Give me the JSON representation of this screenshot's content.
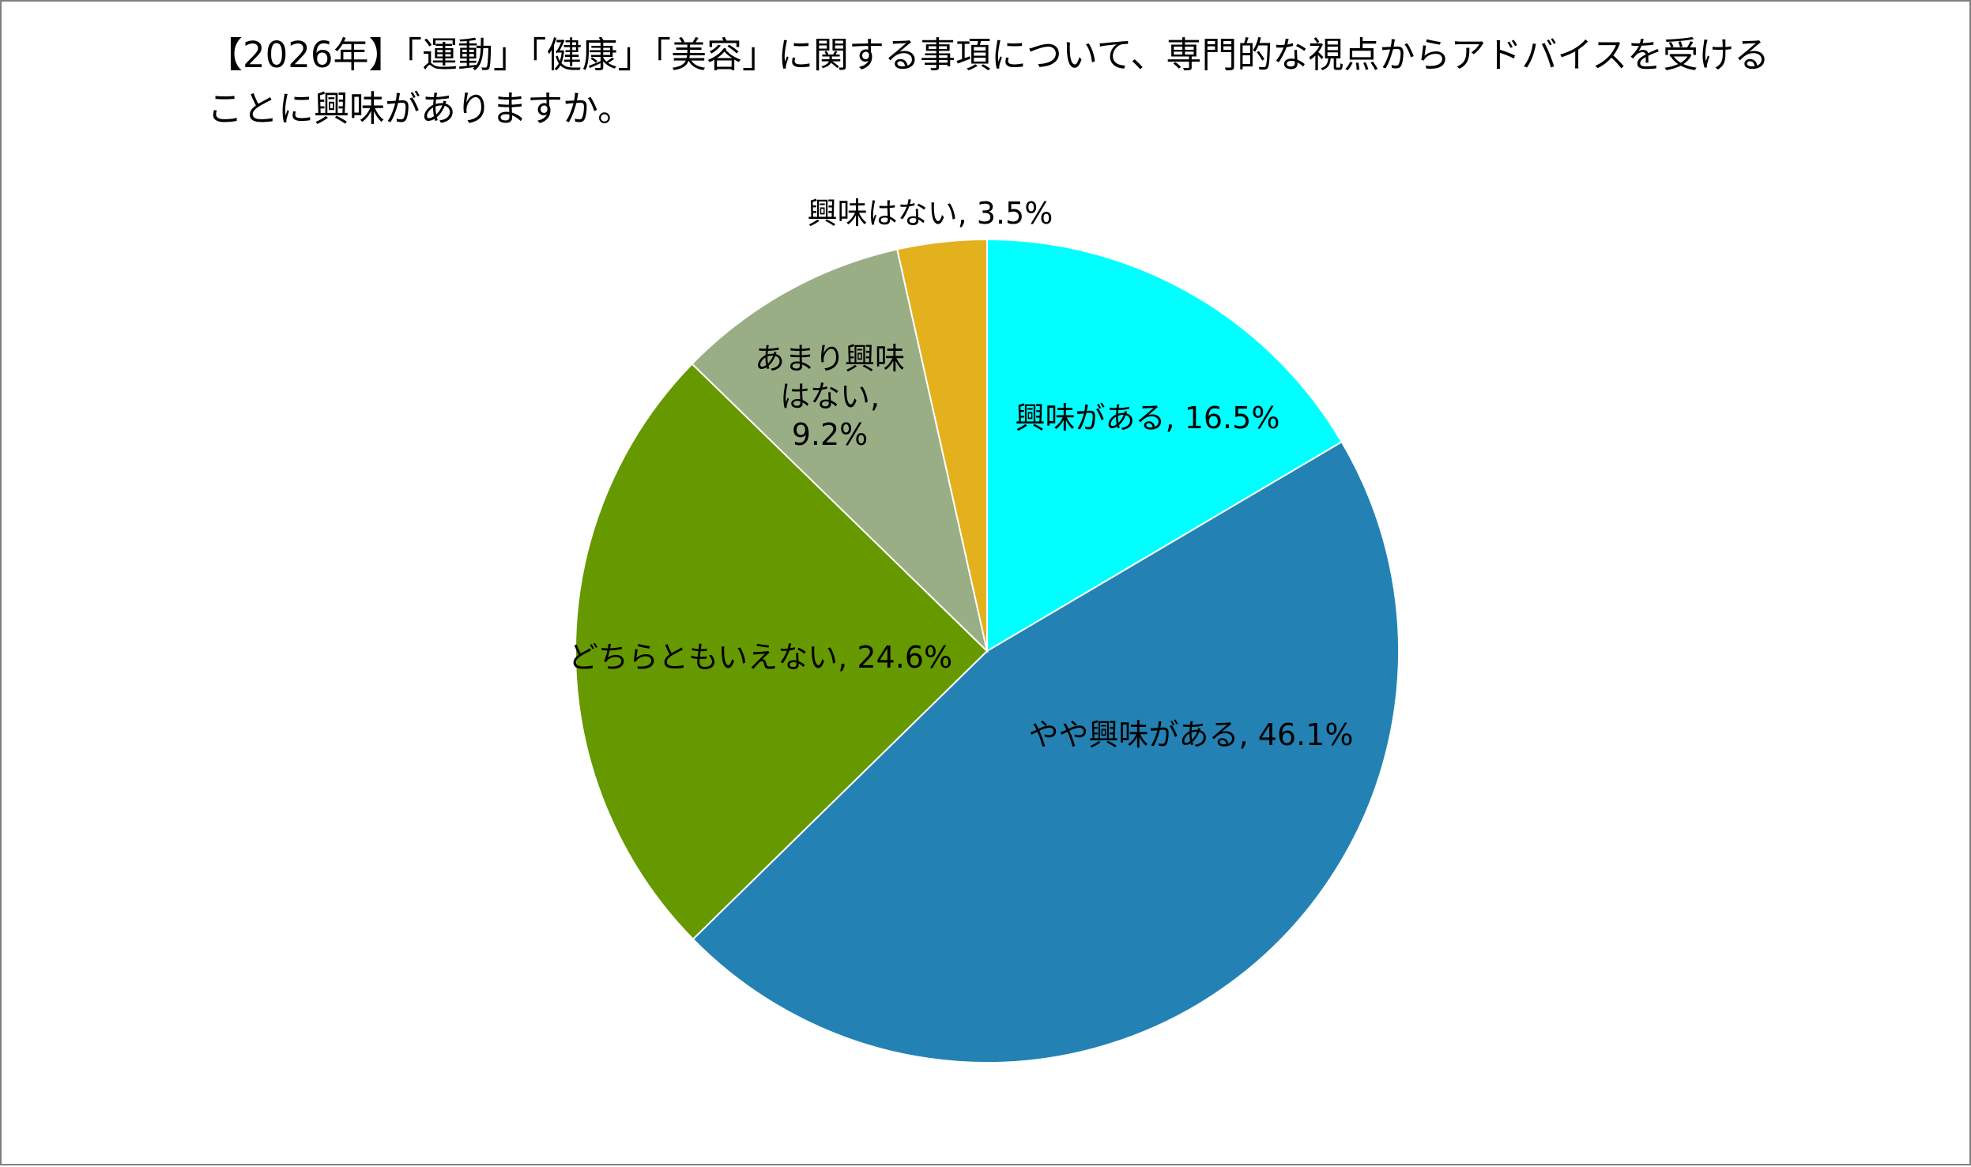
{
  "chart_data": {
    "type": "pie",
    "title_lines": [
      "【2026年】「運動」「健康」「美容」に関する事項について、専門的な視点からアドバイスを受ける",
      "ことに興味がありますか。"
    ],
    "slices": [
      {
        "name": "興味がある",
        "value": 16.5,
        "value_label": "16.5%",
        "label_lines": [
          "興味がある, 16.5%"
        ],
        "color": "#00FFFF"
      },
      {
        "name": "やや興味がある",
        "value": 46.1,
        "value_label": "46.1%",
        "label_lines": [
          "やや興味がある, 46.1%"
        ],
        "color": "#2382B3"
      },
      {
        "name": "どちらともいえない",
        "value": 24.6,
        "value_label": "24.6%",
        "label_lines": [
          "どちらともいえない, 24.6%"
        ],
        "color": "#669900"
      },
      {
        "name": "あまり興味はない",
        "value": 9.2,
        "value_label": "9.2%",
        "label_lines": [
          "あまり興味",
          "はない,",
          "9.2%"
        ],
        "color": "#9AAE85"
      },
      {
        "name": "興味はない",
        "value": 3.5,
        "value_label": "3.5%",
        "label_lines": [
          "興味はない, 3.5%"
        ],
        "color": "#E2B11D"
      }
    ],
    "start_angle": "12 o'clock",
    "direction": "clockwise",
    "legend": "none",
    "data_labels": "category name and value"
  }
}
